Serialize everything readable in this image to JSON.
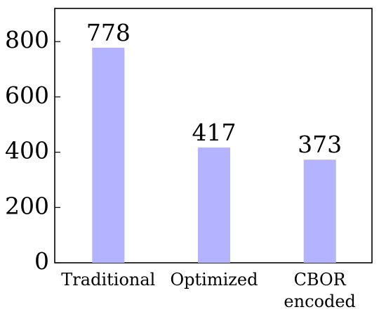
{
  "chart_data": {
    "type": "bar",
    "categories": [
      [
        "Traditional"
      ],
      [
        "Optimized"
      ],
      [
        "CBOR",
        "encoded"
      ]
    ],
    "values": [
      778,
      417,
      373
    ],
    "data_labels": [
      "778",
      "417",
      "373"
    ],
    "ylim": [
      0,
      920
    ],
    "yticks": [
      0,
      200,
      400,
      600,
      800
    ],
    "ytick_labels": [
      "0",
      "200",
      "400",
      "600",
      "800"
    ],
    "bar_color": "#b3b3ff",
    "grid": false,
    "legend": "none"
  }
}
